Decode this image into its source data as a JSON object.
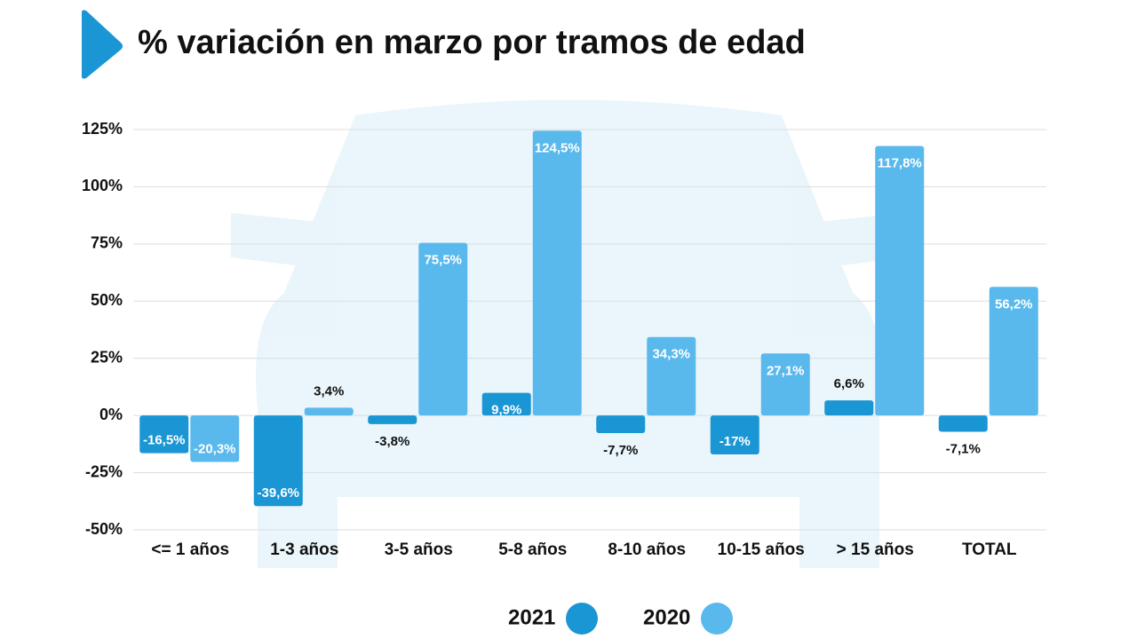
{
  "chart_data": {
    "type": "bar",
    "title": "% variación en marzo por tramos de edad",
    "categories": [
      "<= 1 años",
      "1-3 años",
      "3-5 años",
      "5-8 años",
      "8-10 años",
      "10-15 años",
      "> 15 años",
      "TOTAL"
    ],
    "series": [
      {
        "name": "2021",
        "color": "#1a96d4",
        "values": [
          -16.5,
          -39.6,
          -3.8,
          9.9,
          -7.7,
          -17,
          6.6,
          -7.1
        ],
        "value_labels": [
          "-16,5%",
          "-39,6%",
          "-3,8%",
          "9,9%",
          "-7,7%",
          "-17%",
          "6,6%",
          "-7,1%"
        ]
      },
      {
        "name": "2020",
        "color": "#5ab9ec",
        "values": [
          -20.3,
          3.4,
          75.5,
          124.5,
          34.3,
          27.1,
          117.8,
          56.2
        ],
        "value_labels": [
          "-20,3%",
          "3,4%",
          "75,5%",
          "124,5%",
          "34,3%",
          "27,1%",
          "117,8%",
          "56,2%"
        ]
      }
    ],
    "ylim": [
      -50,
      125
    ],
    "yticks": [
      {
        "value": -50,
        "label": "-50%"
      },
      {
        "value": -25,
        "label": "-25%"
      },
      {
        "value": 0,
        "label": "0%"
      },
      {
        "value": 25,
        "label": "25%"
      },
      {
        "value": 50,
        "label": "50%"
      },
      {
        "value": 75,
        "label": "75%"
      },
      {
        "value": 100,
        "label": "100%"
      },
      {
        "value": 125,
        "label": "125%"
      }
    ],
    "grid": true,
    "legend": "bottom"
  }
}
